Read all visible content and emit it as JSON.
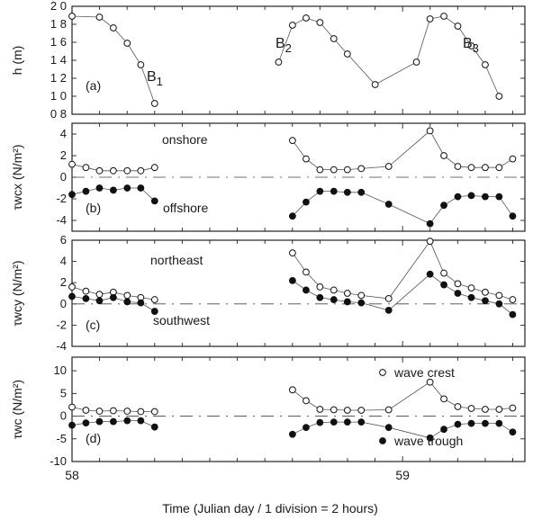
{
  "x_label": "Time (Julian day / 1 division = 2 hours)",
  "x_ticks": [
    "58",
    "59"
  ],
  "chart_data": [
    {
      "type": "line",
      "panel_label": "(a)",
      "ylabel": "h (m)",
      "ylim": [
        0.8,
        2.0
      ],
      "yticks": [
        "2 0",
        "1 8",
        "1 6",
        "1 4",
        "1 2",
        "1 0",
        "0 8"
      ],
      "annotations": [
        "B1",
        "B2",
        "B3"
      ],
      "series": [
        {
          "marker": "open",
          "points": [
            [
              58.0,
              1.89
            ],
            [
              58.083,
              1.88
            ],
            [
              58.125,
              1.76
            ],
            [
              58.167,
              1.59
            ],
            [
              58.208,
              1.35
            ],
            [
              58.25,
              0.92
            ],
            [
              58.625,
              1.38
            ],
            [
              58.667,
              1.79
            ],
            [
              58.708,
              1.87
            ],
            [
              58.75,
              1.82
            ],
            [
              58.792,
              1.64
            ],
            [
              58.833,
              1.47
            ],
            [
              58.917,
              1.13
            ],
            [
              59.042,
              1.38
            ],
            [
              59.083,
              1.86
            ],
            [
              59.125,
              1.89
            ],
            [
              59.167,
              1.78
            ],
            [
              59.208,
              1.56
            ],
            [
              59.25,
              1.35
            ],
            [
              59.292,
              1.0
            ]
          ]
        }
      ]
    },
    {
      "type": "line",
      "panel_label": "(b)",
      "ylabel": "τwcx (N/m²)",
      "ylim": [
        -5,
        5
      ],
      "yticks": [
        "4",
        "2",
        "0",
        "-2",
        "-4"
      ],
      "annotations": [
        "onshore",
        "offshore"
      ],
      "series": [
        {
          "marker": "open",
          "points": [
            [
              58.0,
              1.2
            ],
            [
              58.042,
              0.9
            ],
            [
              58.083,
              0.6
            ],
            [
              58.125,
              0.6
            ],
            [
              58.167,
              0.6
            ],
            [
              58.208,
              0.6
            ],
            [
              58.25,
              0.9
            ],
            [
              58.667,
              3.4
            ],
            [
              58.708,
              1.7
            ],
            [
              58.75,
              0.7
            ],
            [
              58.792,
              0.7
            ],
            [
              58.833,
              0.7
            ],
            [
              58.875,
              0.8
            ],
            [
              58.958,
              1.0
            ],
            [
              59.083,
              4.3
            ],
            [
              59.125,
              2.0
            ],
            [
              59.167,
              1.0
            ],
            [
              59.208,
              0.9
            ],
            [
              59.25,
              0.9
            ],
            [
              59.292,
              0.9
            ],
            [
              59.333,
              1.7
            ]
          ]
        },
        {
          "marker": "filled",
          "points": [
            [
              58.0,
              -1.6
            ],
            [
              58.042,
              -1.3
            ],
            [
              58.083,
              -1.0
            ],
            [
              58.125,
              -1.2
            ],
            [
              58.167,
              -1.0
            ],
            [
              58.208,
              -1.0
            ],
            [
              58.25,
              -2.2
            ],
            [
              58.667,
              -3.6
            ],
            [
              58.708,
              -2.3
            ],
            [
              58.75,
              -1.3
            ],
            [
              58.792,
              -1.3
            ],
            [
              58.833,
              -1.4
            ],
            [
              58.875,
              -1.4
            ],
            [
              58.958,
              -2.5
            ],
            [
              59.083,
              -4.3
            ],
            [
              59.125,
              -2.6
            ],
            [
              59.167,
              -1.8
            ],
            [
              59.208,
              -1.7
            ],
            [
              59.25,
              -1.8
            ],
            [
              59.292,
              -1.8
            ],
            [
              59.333,
              -3.6
            ]
          ]
        }
      ]
    },
    {
      "type": "line",
      "panel_label": "(c)",
      "ylabel": "τwcy (N/m²)",
      "ylim": [
        -4,
        6
      ],
      "yticks": [
        "6",
        "4",
        "2",
        "0",
        "-2",
        "-4"
      ],
      "annotations": [
        "northeast",
        "southwest"
      ],
      "series": [
        {
          "marker": "open",
          "points": [
            [
              58.0,
              1.6
            ],
            [
              58.042,
              1.2
            ],
            [
              58.083,
              0.9
            ],
            [
              58.125,
              1.1
            ],
            [
              58.167,
              0.8
            ],
            [
              58.208,
              0.6
            ],
            [
              58.25,
              0.4
            ],
            [
              58.667,
              4.8
            ],
            [
              58.708,
              3.0
            ],
            [
              58.75,
              1.6
            ],
            [
              58.792,
              1.3
            ],
            [
              58.833,
              1.0
            ],
            [
              58.875,
              0.8
            ],
            [
              58.958,
              0.5
            ],
            [
              59.083,
              5.9
            ],
            [
              59.125,
              2.9
            ],
            [
              59.167,
              1.9
            ],
            [
              59.208,
              1.5
            ],
            [
              59.25,
              1.1
            ],
            [
              59.292,
              0.8
            ],
            [
              59.333,
              0.4
            ]
          ]
        },
        {
          "marker": "filled",
          "points": [
            [
              58.0,
              0.7
            ],
            [
              58.042,
              0.5
            ],
            [
              58.083,
              0.3
            ],
            [
              58.125,
              0.6
            ],
            [
              58.167,
              0.2
            ],
            [
              58.208,
              0.1
            ],
            [
              58.25,
              -0.7
            ],
            [
              58.667,
              2.2
            ],
            [
              58.708,
              1.3
            ],
            [
              58.75,
              0.6
            ],
            [
              58.792,
              0.4
            ],
            [
              58.833,
              0.2
            ],
            [
              58.875,
              0.1
            ],
            [
              58.958,
              -0.6
            ],
            [
              59.083,
              2.8
            ],
            [
              59.125,
              1.8
            ],
            [
              59.167,
              1.0
            ],
            [
              59.208,
              0.6
            ],
            [
              59.25,
              0.3
            ],
            [
              59.292,
              0.0
            ],
            [
              59.333,
              -1.0
            ]
          ]
        }
      ]
    },
    {
      "type": "line",
      "panel_label": "(d)",
      "ylabel": "τwc (N/m²)",
      "ylim": [
        -10,
        13
      ],
      "yticks": [
        "10",
        "5",
        "0",
        "-5",
        "-10"
      ],
      "legend": [
        {
          "marker": "open",
          "label": "wave crest"
        },
        {
          "marker": "filled",
          "label": "wave trough"
        }
      ],
      "series": [
        {
          "marker": "open",
          "points": [
            [
              58.0,
              2.0
            ],
            [
              58.042,
              1.3
            ],
            [
              58.083,
              1.1
            ],
            [
              58.125,
              1.2
            ],
            [
              58.167,
              1.1
            ],
            [
              58.208,
              1.0
            ],
            [
              58.25,
              1.0
            ],
            [
              58.667,
              5.8
            ],
            [
              58.708,
              3.4
            ],
            [
              58.75,
              1.5
            ],
            [
              58.792,
              1.4
            ],
            [
              58.833,
              1.3
            ],
            [
              58.875,
              1.3
            ],
            [
              58.958,
              1.4
            ],
            [
              59.083,
              7.5
            ],
            [
              59.125,
              3.8
            ],
            [
              59.167,
              2.1
            ],
            [
              59.208,
              1.7
            ],
            [
              59.25,
              1.5
            ],
            [
              59.292,
              1.5
            ],
            [
              59.333,
              1.8
            ]
          ]
        },
        {
          "marker": "filled",
          "points": [
            [
              58.0,
              -2.0
            ],
            [
              58.042,
              -1.5
            ],
            [
              58.083,
              -1.2
            ],
            [
              58.125,
              -1.2
            ],
            [
              58.167,
              -1.0
            ],
            [
              58.208,
              -1.0
            ],
            [
              58.25,
              -2.4
            ],
            [
              58.667,
              -4.0
            ],
            [
              58.708,
              -2.5
            ],
            [
              58.75,
              -1.4
            ],
            [
              58.792,
              -1.3
            ],
            [
              58.833,
              -1.3
            ],
            [
              58.875,
              -1.3
            ],
            [
              58.958,
              -2.5
            ],
            [
              59.083,
              -4.8
            ],
            [
              59.125,
              -2.9
            ],
            [
              59.167,
              -1.8
            ],
            [
              59.208,
              -1.6
            ],
            [
              59.25,
              -1.6
            ],
            [
              59.292,
              -1.6
            ],
            [
              59.333,
              -3.5
            ]
          ]
        }
      ]
    }
  ]
}
